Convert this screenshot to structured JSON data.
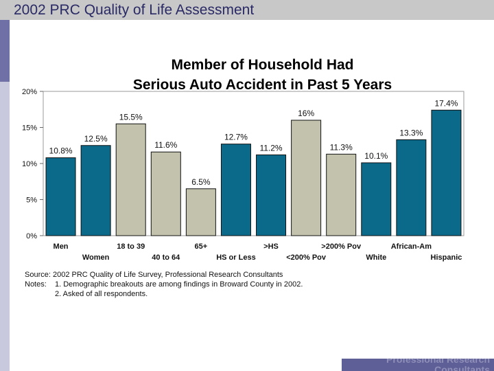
{
  "header": {
    "title": "2002 PRC Quality of Life Assessment"
  },
  "footer": {
    "brand": "Professional Research Consultants"
  },
  "chart_data": {
    "type": "bar",
    "title_line1": "Member of Household Had",
    "title_line2": "Serious Auto Accident in Past 5 Years",
    "categories": [
      "Men",
      "Women",
      "18 to 39",
      "40 to 64",
      "65+",
      "HS or Less",
      ">HS",
      "<200% Pov",
      ">200% Pov",
      "White",
      "African-Am",
      "Hispanic"
    ],
    "values": [
      10.8,
      12.5,
      15.5,
      11.6,
      6.5,
      12.7,
      11.2,
      16,
      11.3,
      10.1,
      13.3,
      17.4
    ],
    "labels": [
      "10.8%",
      "12.5%",
      "15.5%",
      "11.6%",
      "6.5%",
      "12.7%",
      "11.2%",
      "16%",
      "11.3%",
      "10.1%",
      "13.3%",
      "17.4%"
    ],
    "bar_colors": [
      "#0b6a8a",
      "#0b6a8a",
      "#c2c2ad",
      "#c2c2ad",
      "#c2c2ad",
      "#0b6a8a",
      "#0b6a8a",
      "#c2c2ad",
      "#c2c2ad",
      "#0b6a8a",
      "#0b6a8a",
      "#0b6a8a"
    ],
    "yticks": [
      "0%",
      "5%",
      "10%",
      "15%",
      "20%"
    ],
    "ylim": [
      0,
      20
    ],
    "grid": false,
    "xlabel": "",
    "ylabel": ""
  },
  "notes": {
    "source": "Source: 2002 PRC Quality of Life Survey, Professional Research Consultants",
    "notes_label": "Notes:",
    "note1": "1. Demographic breakouts are among findings in Broward County in 2002.",
    "note2": "2. Asked of all respondents."
  }
}
